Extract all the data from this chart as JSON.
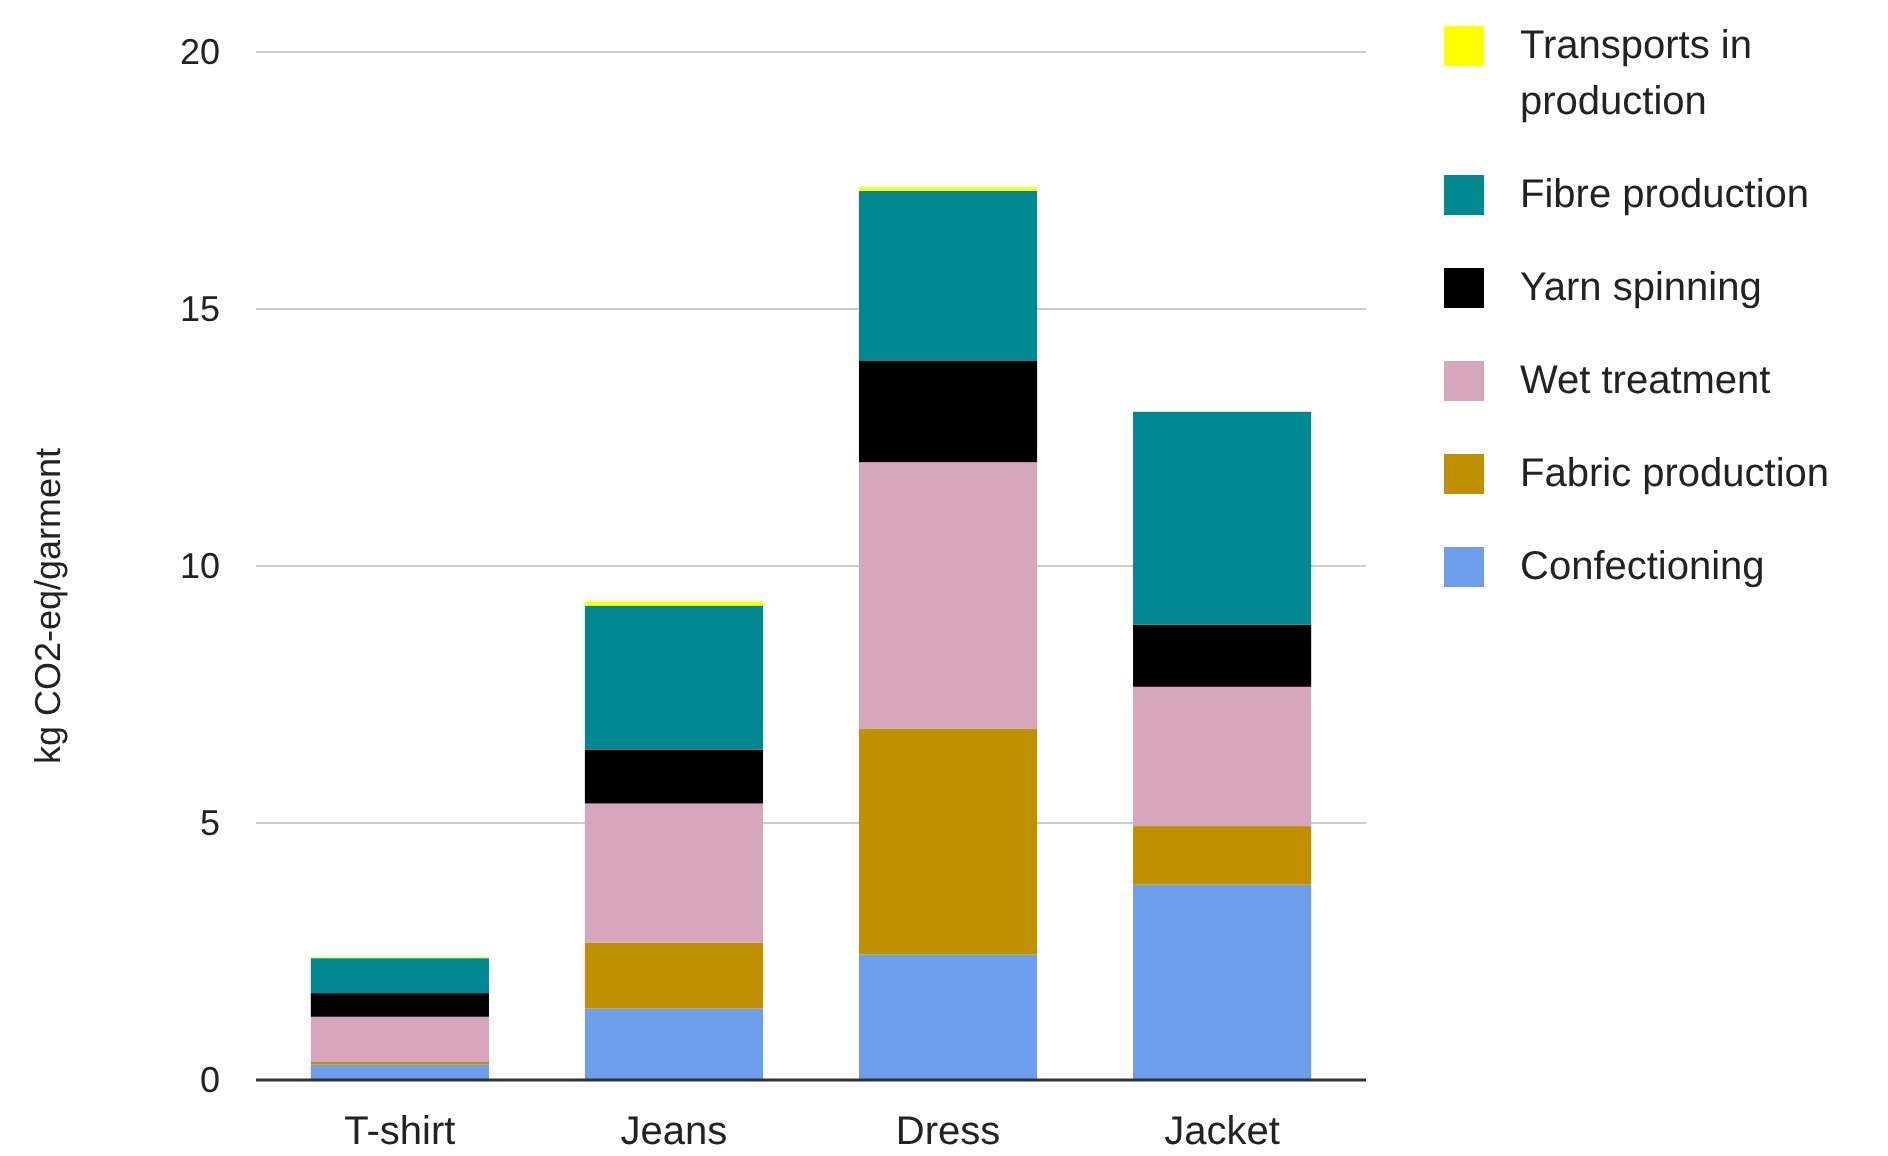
{
  "chart_data": {
    "type": "bar",
    "stacked": true,
    "ylabel": "kg CO2-eq/garment",
    "categories": [
      "T-shirt",
      "Jeans",
      "Dress",
      "Jacket"
    ],
    "ylim": [
      0,
      20
    ],
    "yticks": [
      0,
      5,
      10,
      15,
      20
    ],
    "grid": "y",
    "legend": "right",
    "series": [
      {
        "name": "Confectioning",
        "color": "#6d9eeb",
        "values": [
          0.3,
          1.39,
          2.44,
          3.8
        ]
      },
      {
        "name": "Fabric production",
        "color": "#bf9000",
        "values": [
          0.05,
          1.28,
          4.4,
          1.14
        ]
      },
      {
        "name": "Wet treatment",
        "color": "#d5a6bd",
        "values": [
          0.88,
          2.71,
          5.18,
          2.71
        ]
      },
      {
        "name": "Yarn spinning",
        "color": "#000000",
        "values": [
          0.46,
          1.05,
          1.98,
          1.21
        ]
      },
      {
        "name": "Fibre production",
        "color": "#008891",
        "values": [
          0.68,
          2.8,
          3.3,
          4.14
        ]
      },
      {
        "name": "Transports in production",
        "color": "#ffff00",
        "values": [
          0.02,
          0.08,
          0.07,
          0
        ]
      }
    ]
  }
}
